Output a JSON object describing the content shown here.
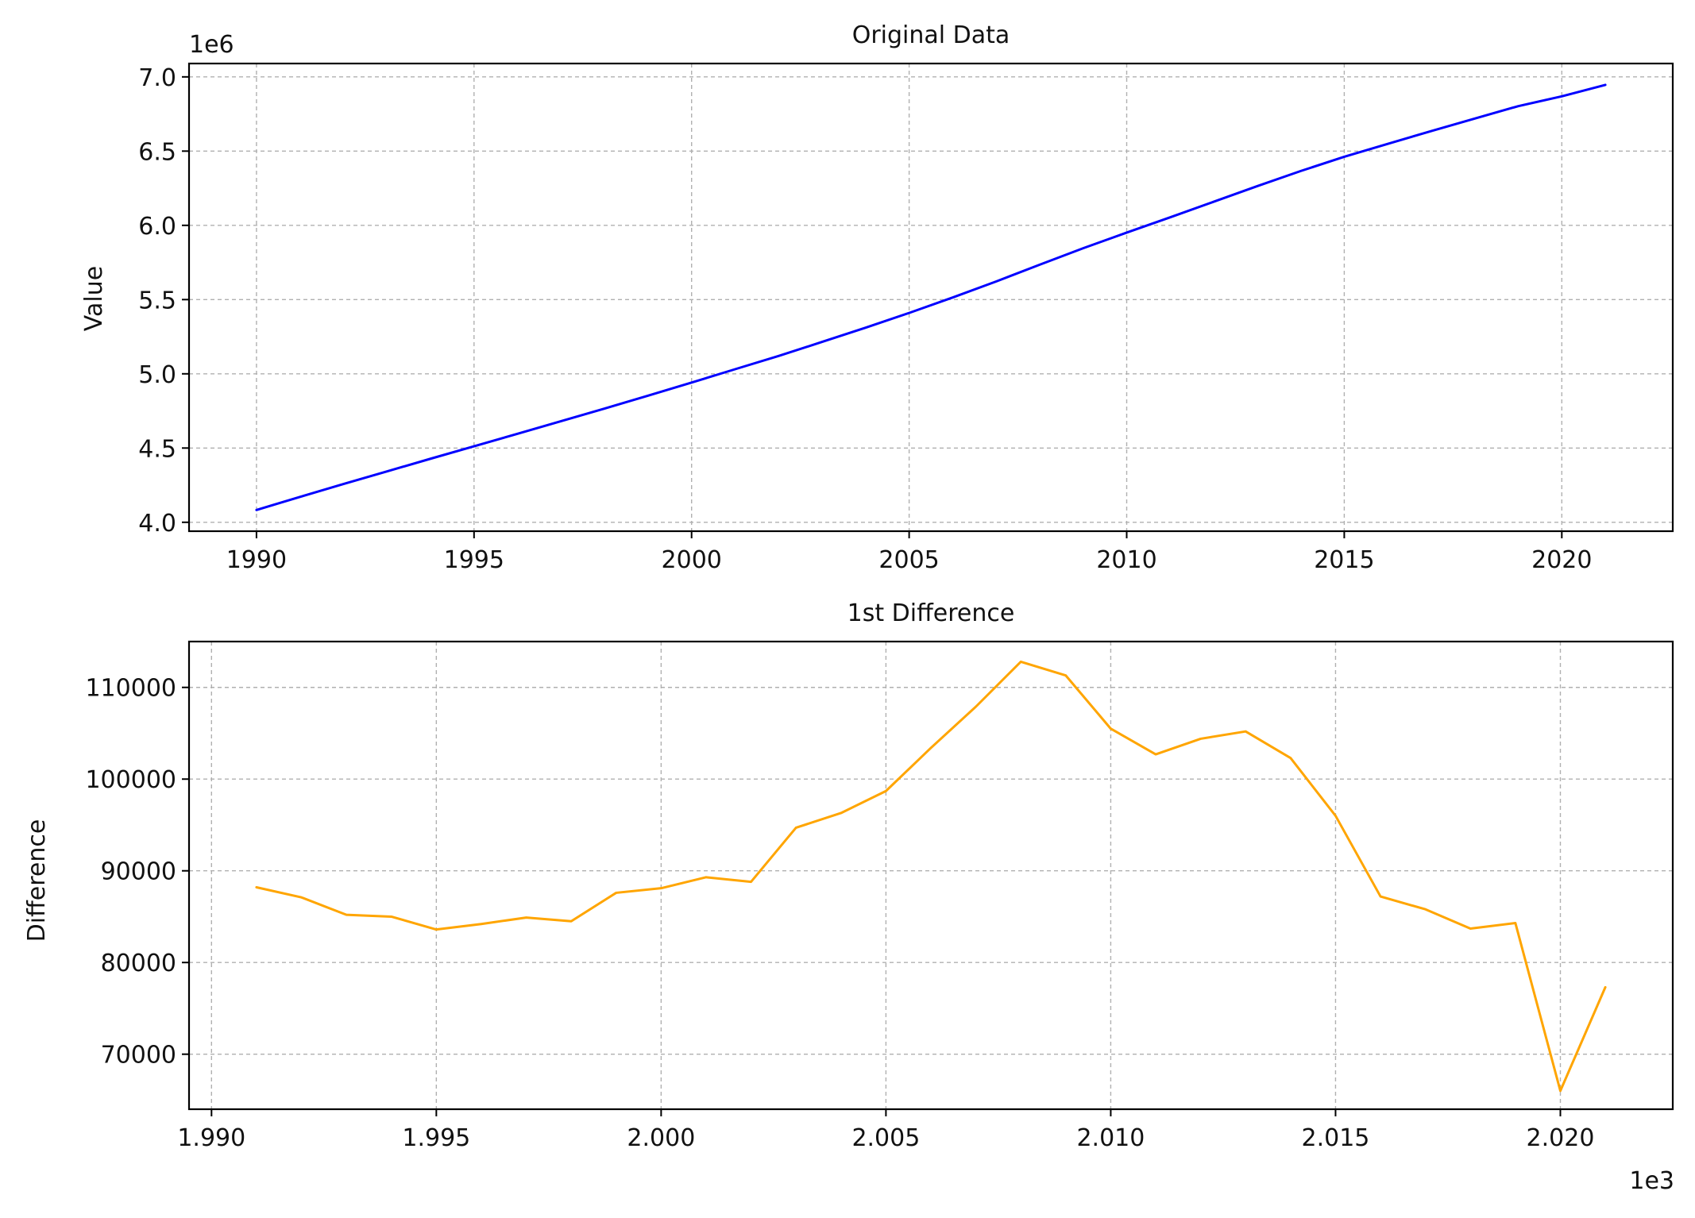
{
  "chart_data": [
    {
      "type": "line",
      "title": "Original Data",
      "xlabel": "",
      "ylabel": "Value",
      "y_offset_label": "1e6",
      "color": "#0000ff",
      "grid": true,
      "xlim": [
        1988.45,
        2022.55
      ],
      "ylim": [
        3.94,
        7.09
      ],
      "y_scale": 1000000,
      "xticks": [
        1990,
        1995,
        2000,
        2005,
        2010,
        2015,
        2020
      ],
      "xtick_labels": [
        "1990",
        "1995",
        "2000",
        "2005",
        "2010",
        "2015",
        "2020"
      ],
      "yticks": [
        4.0,
        4.5,
        5.0,
        5.5,
        6.0,
        6.5,
        7.0
      ],
      "ytick_labels": [
        "4.0",
        "4.5",
        "5.0",
        "5.5",
        "6.0",
        "6.5",
        "7.0"
      ],
      "x": [
        1990,
        1991,
        1992,
        1993,
        1994,
        1995,
        1996,
        1997,
        1998,
        1999,
        2000,
        2001,
        2002,
        2003,
        2004,
        2005,
        2006,
        2007,
        2008,
        2009,
        2010,
        2011,
        2012,
        2013,
        2014,
        2015,
        2016,
        2017,
        2018,
        2019,
        2020,
        2021
      ],
      "values": [
        4083000,
        4171000,
        4258000,
        4343000,
        4428000,
        4512000,
        4596000,
        4681000,
        4766000,
        4853000,
        4941000,
        5031000,
        5120000,
        5215000,
        5311000,
        5410000,
        5514000,
        5622000,
        5735000,
        5846000,
        5951000,
        6054000,
        6159000,
        6264000,
        6366000,
        6462000,
        6549000,
        6635000,
        6719000,
        6803000,
        6869000,
        6946000
      ],
      "series": [
        {
          "name": "",
          "color": "#0000ff"
        }
      ]
    },
    {
      "type": "line",
      "title": "1st Difference",
      "xlabel": "",
      "ylabel": "Difference",
      "x_offset_label": "1e3",
      "color": "#ffa500",
      "grid": true,
      "xlim": [
        1989.5,
        2022.5
      ],
      "ylim": [
        64000,
        115000
      ],
      "xticks": [
        1990,
        1995,
        2000,
        2005,
        2010,
        2015,
        2020
      ],
      "xtick_labels": [
        "1.990",
        "1.995",
        "2.000",
        "2.005",
        "2.010",
        "2.015",
        "2.020"
      ],
      "yticks": [
        70000,
        80000,
        90000,
        100000,
        110000
      ],
      "ytick_labels": [
        "70000",
        "80000",
        "90000",
        "100000",
        "110000"
      ],
      "x": [
        1991,
        1992,
        1993,
        1994,
        1995,
        1996,
        1997,
        1998,
        1999,
        2000,
        2001,
        2002,
        2003,
        2004,
        2005,
        2006,
        2007,
        2008,
        2009,
        2010,
        2011,
        2012,
        2013,
        2014,
        2015,
        2016,
        2017,
        2018,
        2019,
        2020,
        2021
      ],
      "values": [
        88200,
        87100,
        85200,
        85000,
        83600,
        84200,
        84900,
        84500,
        87600,
        88100,
        89300,
        88800,
        94700,
        96300,
        98700,
        103400,
        107900,
        112800,
        111300,
        105500,
        102700,
        104400,
        105200,
        102300,
        96000,
        87200,
        85800,
        83700,
        84300,
        66000,
        77300
      ],
      "series": [
        {
          "name": "",
          "color": "#ffa500"
        }
      ]
    }
  ]
}
